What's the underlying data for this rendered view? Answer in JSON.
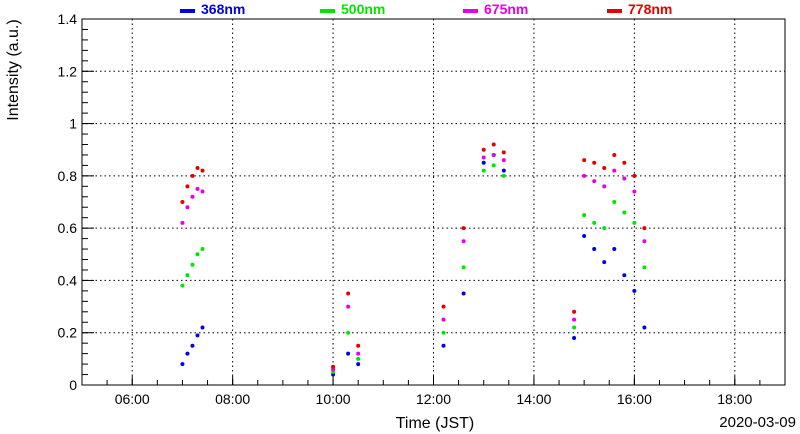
{
  "chart_data": {
    "type": "scatter",
    "xlabel": "Time (JST)",
    "ylabel": "Intensity (a.u.)",
    "date_label": "2020-03-09",
    "xlim": [
      5.0,
      19.0
    ],
    "ylim": [
      0,
      1.4
    ],
    "x_ticks": [
      {
        "value": 6,
        "label": "06:00"
      },
      {
        "value": 8,
        "label": "08:00"
      },
      {
        "value": 10,
        "label": "10:00"
      },
      {
        "value": 12,
        "label": "12:00"
      },
      {
        "value": 14,
        "label": "14:00"
      },
      {
        "value": 16,
        "label": "16:00"
      },
      {
        "value": 18,
        "label": "18:00"
      }
    ],
    "y_ticks": [
      {
        "value": 0,
        "label": "0"
      },
      {
        "value": 0.2,
        "label": "0.2"
      },
      {
        "value": 0.4,
        "label": "0.4"
      },
      {
        "value": 0.6,
        "label": "0.6"
      },
      {
        "value": 0.8,
        "label": "0.8"
      },
      {
        "value": 1.0,
        "label": "1"
      },
      {
        "value": 1.2,
        "label": "1.2"
      },
      {
        "value": 1.4,
        "label": "1.4"
      }
    ],
    "grid": true,
    "legend_position": "top",
    "series": [
      {
        "name": "368nm",
        "color": "#0000e6",
        "x": [
          7.0,
          7.1,
          7.2,
          7.3,
          7.4,
          10.0,
          10.3,
          10.5,
          12.2,
          12.6,
          13.0,
          13.2,
          13.4,
          14.8,
          15.0,
          15.2,
          15.4,
          15.6,
          15.8,
          16.0,
          16.2
        ],
        "y": [
          0.08,
          0.12,
          0.15,
          0.19,
          0.22,
          0.04,
          0.12,
          0.08,
          0.15,
          0.35,
          0.85,
          0.88,
          0.82,
          0.18,
          0.57,
          0.52,
          0.47,
          0.52,
          0.42,
          0.36,
          0.22
        ]
      },
      {
        "name": "500nm",
        "color": "#00e600",
        "x": [
          7.0,
          7.1,
          7.2,
          7.3,
          7.4,
          10.0,
          10.3,
          10.5,
          12.2,
          12.6,
          13.0,
          13.2,
          13.4,
          14.8,
          15.0,
          15.2,
          15.4,
          15.6,
          15.8,
          16.0,
          16.2
        ],
        "y": [
          0.38,
          0.42,
          0.46,
          0.5,
          0.52,
          0.05,
          0.2,
          0.1,
          0.2,
          0.45,
          0.82,
          0.84,
          0.8,
          0.22,
          0.65,
          0.62,
          0.6,
          0.7,
          0.66,
          0.62,
          0.45
        ]
      },
      {
        "name": "675nm",
        "color": "#e600e6",
        "x": [
          7.0,
          7.1,
          7.2,
          7.3,
          7.4,
          10.0,
          10.3,
          10.5,
          12.2,
          12.6,
          13.0,
          13.2,
          13.4,
          14.8,
          15.0,
          15.2,
          15.4,
          15.6,
          15.8,
          16.0,
          16.2
        ],
        "y": [
          0.62,
          0.68,
          0.72,
          0.75,
          0.74,
          0.06,
          0.3,
          0.12,
          0.25,
          0.55,
          0.87,
          0.88,
          0.86,
          0.25,
          0.8,
          0.78,
          0.76,
          0.82,
          0.79,
          0.74,
          0.55
        ]
      },
      {
        "name": "778nm",
        "color": "#e60000",
        "x": [
          7.0,
          7.1,
          7.2,
          7.3,
          7.4,
          10.0,
          10.3,
          10.5,
          12.2,
          12.6,
          13.0,
          13.2,
          13.4,
          14.8,
          15.0,
          15.2,
          15.4,
          15.6,
          15.8,
          16.0,
          16.2
        ],
        "y": [
          0.7,
          0.76,
          0.8,
          0.83,
          0.82,
          0.07,
          0.35,
          0.15,
          0.3,
          0.6,
          0.9,
          0.92,
          0.89,
          0.28,
          0.86,
          0.85,
          0.83,
          0.88,
          0.85,
          0.8,
          0.6
        ]
      }
    ]
  }
}
